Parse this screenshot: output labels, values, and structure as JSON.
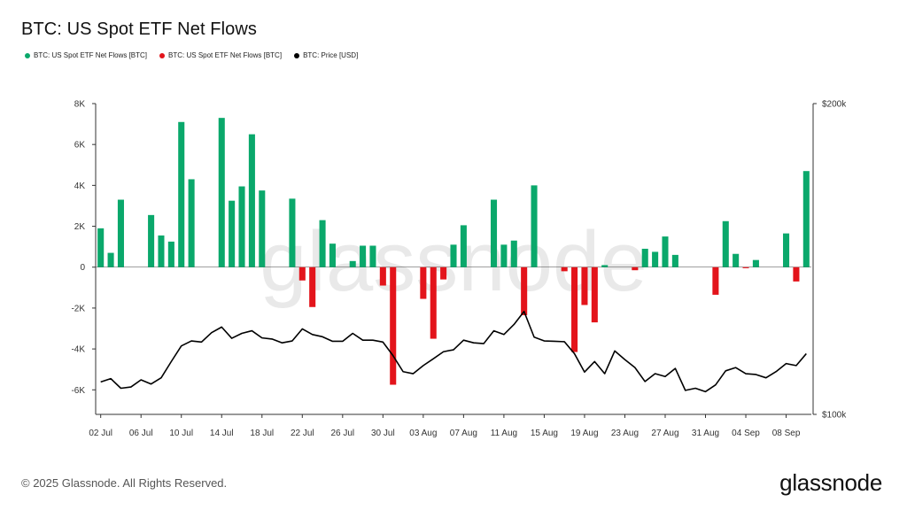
{
  "page": {
    "title": "BTC: US Spot ETF Net Flows",
    "footer": "© 2025 Glassnode. All Rights Reserved.",
    "logo": "glassnode",
    "watermark": "glassnode"
  },
  "legend": [
    {
      "label": "BTC: US Spot ETF Net Flows [BTC]",
      "color": "#0aa86b"
    },
    {
      "label": "BTC: US Spot ETF Net Flows [BTC]",
      "color": "#e3141b"
    },
    {
      "label": "BTC: Price [USD]",
      "color": "#000000"
    }
  ],
  "chart_data": {
    "type": "bar",
    "colors": {
      "positive": "#0aa86b",
      "negative": "#e3141b",
      "price": "#000000"
    },
    "y_left": {
      "ticks": [
        "8K",
        "6K",
        "4K",
        "2K",
        "0",
        "-2K",
        "-4K",
        "-6K"
      ],
      "tick_values": [
        8000,
        6000,
        4000,
        2000,
        0,
        -2000,
        -4000,
        -6000
      ],
      "range": [
        -7200,
        8000
      ]
    },
    "y_right": {
      "ticks": [
        "$200k",
        "$100k"
      ],
      "range": [
        100000,
        200000
      ],
      "scale": "log"
    },
    "x_ticks": [
      "02 Jul",
      "06 Jul",
      "10 Jul",
      "14 Jul",
      "18 Jul",
      "22 Jul",
      "26 Jul",
      "30 Jul",
      "03 Aug",
      "07 Aug",
      "11 Aug",
      "15 Aug",
      "19 Aug",
      "23 Aug",
      "27 Aug",
      "31 Aug",
      "04 Sep",
      "08 Sep"
    ],
    "x_tick_every": 4,
    "start_date": "2025-07-02",
    "flows": [
      1900,
      700,
      3300,
      0,
      0,
      2550,
      1550,
      1250,
      7100,
      4300,
      0,
      0,
      7300,
      3250,
      3950,
      6500,
      3750,
      0,
      0,
      3350,
      -650,
      -1950,
      2300,
      1150,
      0,
      300,
      1050,
      1050,
      -900,
      -5750,
      0,
      0,
      -1550,
      -3500,
      -600,
      1100,
      2050,
      0,
      0,
      3300,
      1100,
      1300,
      -2350,
      4000,
      0,
      0,
      -200,
      -4150,
      -1850,
      -2700,
      100,
      0,
      0,
      -150,
      900,
      750,
      1500,
      600,
      0,
      0,
      0,
      -1350,
      2250,
      650,
      -50,
      350,
      0,
      0,
      1650,
      -700,
      4700
    ],
    "price": [
      107500,
      108300,
      106000,
      106300,
      108000,
      107000,
      108500,
      112500,
      116500,
      117800,
      117500,
      120000,
      121500,
      118500,
      119800,
      120500,
      118600,
      118300,
      117300,
      117800,
      121000,
      119500,
      118900,
      117700,
      117700,
      119800,
      118000,
      118000,
      117500,
      114000,
      110000,
      109500,
      111500,
      113200,
      115000,
      115500,
      118000,
      117300,
      117100,
      120500,
      119500,
      122200,
      125800,
      118800,
      117800,
      117700,
      117600,
      114500,
      109900,
      112500,
      109500,
      115200,
      113000,
      111000,
      107600,
      109500,
      108800,
      110800,
      105500,
      106000,
      105200,
      106800,
      110200,
      111000,
      109500,
      109300,
      108500,
      110000,
      112000,
      111500,
      114500
    ]
  }
}
